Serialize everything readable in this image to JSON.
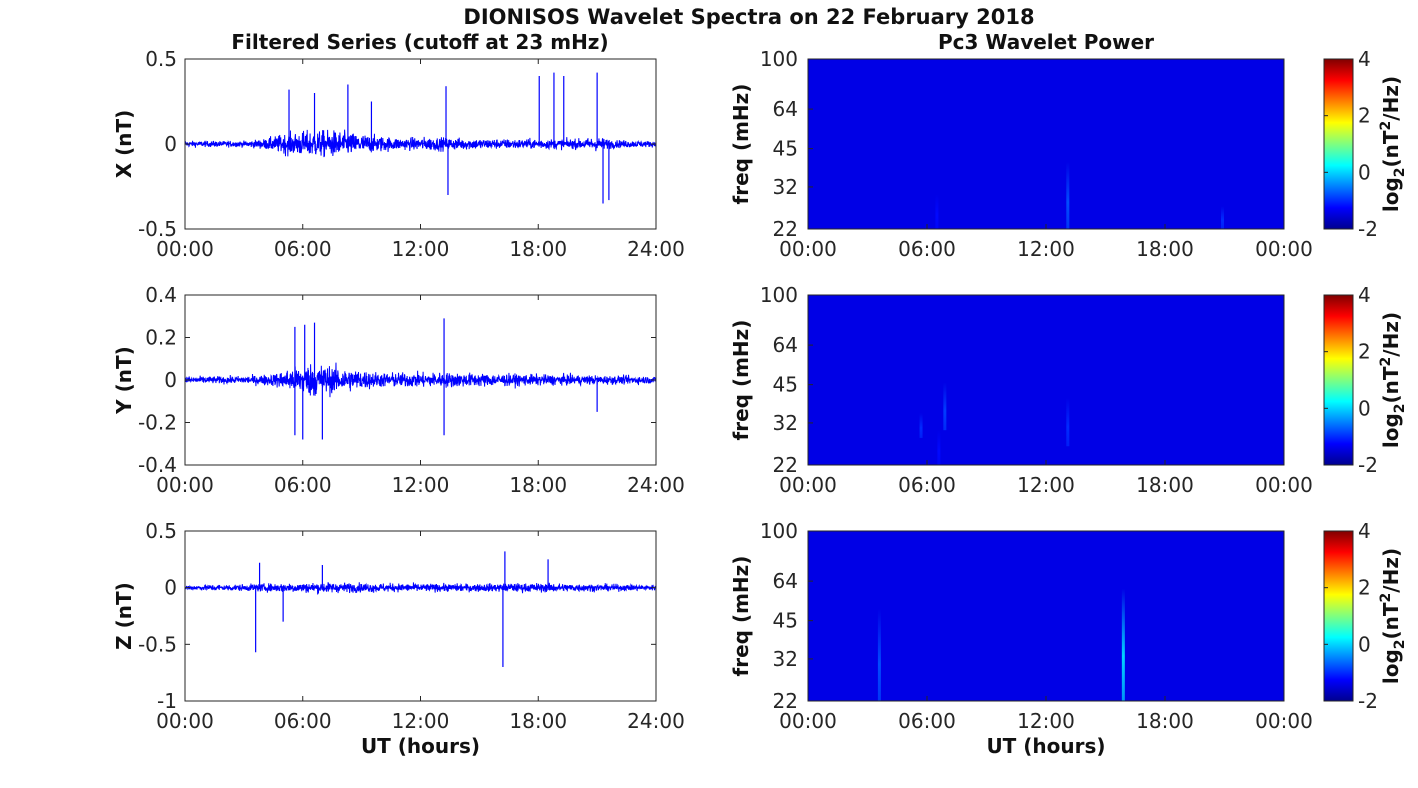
{
  "figure": {
    "title": "DIONISOS Wavelet Spectra on 22 February 2018",
    "left_column_title": "Filtered Series (cutoff at 23 mHz)",
    "right_column_title": "Pc3 Wavelet Power"
  },
  "chart_data": [
    {
      "type": "line",
      "component": "X",
      "ylabel": "X (nT)",
      "xlabel": "",
      "xlim": [
        0,
        24
      ],
      "ylim": [
        -0.5,
        0.5
      ],
      "xticks": [
        "00:00",
        "06:00",
        "12:00",
        "18:00",
        "24:00"
      ],
      "yticks": [
        "-0.5",
        "0",
        "0.5"
      ],
      "color": "#0000ff",
      "envelope": [
        {
          "t": 0,
          "amp": 0.03
        },
        {
          "t": 3,
          "amp": 0.03
        },
        {
          "t": 4,
          "amp": 0.05
        },
        {
          "t": 5,
          "amp": 0.1
        },
        {
          "t": 6,
          "amp": 0.13
        },
        {
          "t": 7.5,
          "amp": 0.14
        },
        {
          "t": 9,
          "amp": 0.1
        },
        {
          "t": 11,
          "amp": 0.06
        },
        {
          "t": 12.5,
          "amp": 0.07
        },
        {
          "t": 14,
          "amp": 0.06
        },
        {
          "t": 16,
          "amp": 0.05
        },
        {
          "t": 18,
          "amp": 0.05
        },
        {
          "t": 20,
          "amp": 0.05
        },
        {
          "t": 21,
          "amp": 0.07
        },
        {
          "t": 22,
          "amp": 0.04
        },
        {
          "t": 24,
          "amp": 0.03
        }
      ],
      "spikes": [
        {
          "t": 5.3,
          "value": 0.32
        },
        {
          "t": 6.6,
          "value": 0.3
        },
        {
          "t": 8.3,
          "value": 0.35
        },
        {
          "t": 9.5,
          "value": 0.25
        },
        {
          "t": 13.3,
          "value": 0.34
        },
        {
          "t": 13.4,
          "value": -0.3
        },
        {
          "t": 18.05,
          "value": 0.4
        },
        {
          "t": 18.8,
          "value": 0.42
        },
        {
          "t": 19.3,
          "value": 0.4
        },
        {
          "t": 21.0,
          "value": 0.42
        },
        {
          "t": 21.3,
          "value": -0.35
        },
        {
          "t": 21.6,
          "value": -0.33
        }
      ]
    },
    {
      "type": "line",
      "component": "Y",
      "ylabel": "Y (nT)",
      "xlabel": "",
      "xlim": [
        0,
        24
      ],
      "ylim": [
        -0.4,
        0.4
      ],
      "xticks": [
        "00:00",
        "06:00",
        "12:00",
        "18:00",
        "24:00"
      ],
      "yticks": [
        "-0.4",
        "-0.2",
        "0",
        "0.2",
        "0.4"
      ],
      "color": "#0000ff",
      "envelope": [
        {
          "t": 0,
          "amp": 0.03
        },
        {
          "t": 3,
          "amp": 0.03
        },
        {
          "t": 4.5,
          "amp": 0.05
        },
        {
          "t": 5.5,
          "amp": 0.1
        },
        {
          "t": 6.5,
          "amp": 0.14
        },
        {
          "t": 8,
          "amp": 0.1
        },
        {
          "t": 10,
          "amp": 0.06
        },
        {
          "t": 12,
          "amp": 0.06
        },
        {
          "t": 13.5,
          "amp": 0.06
        },
        {
          "t": 16,
          "amp": 0.05
        },
        {
          "t": 20,
          "amp": 0.04
        },
        {
          "t": 24,
          "amp": 0.03
        }
      ],
      "spikes": [
        {
          "t": 5.6,
          "value": 0.25
        },
        {
          "t": 6.1,
          "value": 0.26
        },
        {
          "t": 6.6,
          "value": 0.27
        },
        {
          "t": 6.0,
          "value": -0.28
        },
        {
          "t": 7.0,
          "value": -0.28
        },
        {
          "t": 5.6,
          "value": -0.26
        },
        {
          "t": 13.2,
          "value": 0.29
        },
        {
          "t": 13.2,
          "value": -0.26
        },
        {
          "t": 21.0,
          "value": -0.15
        }
      ]
    },
    {
      "type": "line",
      "component": "Z",
      "ylabel": "Z (nT)",
      "xlabel": "UT (hours)",
      "xlim": [
        0,
        24
      ],
      "ylim": [
        -1,
        0.5
      ],
      "xticks": [
        "00:00",
        "06:00",
        "12:00",
        "18:00",
        "24:00"
      ],
      "yticks": [
        "-1",
        "-0.5",
        "0",
        "0.5"
      ],
      "color": "#0000ff",
      "envelope": [
        {
          "t": 0,
          "amp": 0.04
        },
        {
          "t": 3,
          "amp": 0.05
        },
        {
          "t": 5,
          "amp": 0.07
        },
        {
          "t": 7,
          "amp": 0.08
        },
        {
          "t": 9,
          "amp": 0.07
        },
        {
          "t": 12,
          "amp": 0.06
        },
        {
          "t": 15,
          "amp": 0.06
        },
        {
          "t": 18,
          "amp": 0.07
        },
        {
          "t": 20,
          "amp": 0.06
        },
        {
          "t": 24,
          "amp": 0.04
        }
      ],
      "spikes": [
        {
          "t": 3.6,
          "value": -0.57
        },
        {
          "t": 3.8,
          "value": 0.22
        },
        {
          "t": 5.0,
          "value": -0.3
        },
        {
          "t": 16.2,
          "value": -0.7
        },
        {
          "t": 16.3,
          "value": 0.32
        },
        {
          "t": 18.5,
          "value": 0.25
        },
        {
          "t": 7.0,
          "value": 0.2
        }
      ]
    },
    {
      "type": "heatmap",
      "component": "X",
      "ylabel": "freq (mHz)",
      "xlabel": "",
      "xlim": [
        0,
        24
      ],
      "ylim": [
        22,
        100
      ],
      "yscale": "log",
      "xticks": [
        "00:00",
        "06:00",
        "12:00",
        "18:00",
        "00:00"
      ],
      "yticks": [
        "22",
        "32",
        "45",
        "64",
        "100"
      ],
      "background_level": -2,
      "colorbar": {
        "label": "log₂(nT²/Hz)",
        "label_base": "log",
        "label_sub": "2",
        "label_mid": "(nT",
        "label_sup": "2",
        "label_end": "/Hz)",
        "ticks": [
          "-2",
          "0",
          "2",
          "4"
        ],
        "range": [
          -2,
          4
        ]
      },
      "events": [
        {
          "t": 6.5,
          "f_low": 22,
          "f_high": 30,
          "level": -1.2
        },
        {
          "t": 6.9,
          "f_low": 26,
          "f_high": 40,
          "level": -1.4
        },
        {
          "t": 13.1,
          "f_low": 22,
          "f_high": 40,
          "level": -0.8
        },
        {
          "t": 20.6,
          "f_low": 30,
          "f_high": 42,
          "level": -1.4
        },
        {
          "t": 20.9,
          "f_low": 22,
          "f_high": 27,
          "level": -1.0
        }
      ]
    },
    {
      "type": "heatmap",
      "component": "Y",
      "ylabel": "freq (mHz)",
      "xlabel": "",
      "xlim": [
        0,
        24
      ],
      "ylim": [
        22,
        100
      ],
      "yscale": "log",
      "xticks": [
        "00:00",
        "06:00",
        "12:00",
        "18:00",
        "00:00"
      ],
      "yticks": [
        "22",
        "32",
        "45",
        "64",
        "100"
      ],
      "background_level": -2,
      "colorbar": {
        "label": "log₂(nT²/Hz)",
        "label_base": "log",
        "label_sub": "2",
        "label_mid": "(nT",
        "label_sup": "2",
        "label_end": "/Hz)",
        "ticks": [
          "-2",
          "0",
          "2",
          "4"
        ],
        "range": [
          -2,
          4
        ]
      },
      "events": [
        {
          "t": 5.7,
          "f_low": 28,
          "f_high": 35,
          "level": -1.0
        },
        {
          "t": 6.6,
          "f_low": 22,
          "f_high": 30,
          "level": -1.2
        },
        {
          "t": 6.9,
          "f_low": 30,
          "f_high": 46,
          "level": -0.9
        },
        {
          "t": 13.1,
          "f_low": 26,
          "f_high": 40,
          "level": -1.0
        }
      ]
    },
    {
      "type": "heatmap",
      "component": "Z",
      "ylabel": "freq (mHz)",
      "xlabel": "UT (hours)",
      "xlim": [
        0,
        24
      ],
      "ylim": [
        22,
        100
      ],
      "yscale": "log",
      "xticks": [
        "00:00",
        "06:00",
        "12:00",
        "18:00",
        "00:00"
      ],
      "yticks": [
        "22",
        "32",
        "45",
        "64",
        "100"
      ],
      "background_level": -2,
      "colorbar": {
        "label": "log₂(nT²/Hz)",
        "label_base": "log",
        "label_sub": "2",
        "label_mid": "(nT",
        "label_sup": "2",
        "label_end": "/Hz)",
        "ticks": [
          "-2",
          "0",
          "2",
          "4"
        ],
        "range": [
          -2,
          4
        ]
      },
      "events": [
        {
          "t": 3.6,
          "f_low": 22,
          "f_high": 50,
          "level": -0.8
        },
        {
          "t": 15.9,
          "f_low": 22,
          "f_high": 60,
          "level": 0.0
        }
      ]
    }
  ]
}
